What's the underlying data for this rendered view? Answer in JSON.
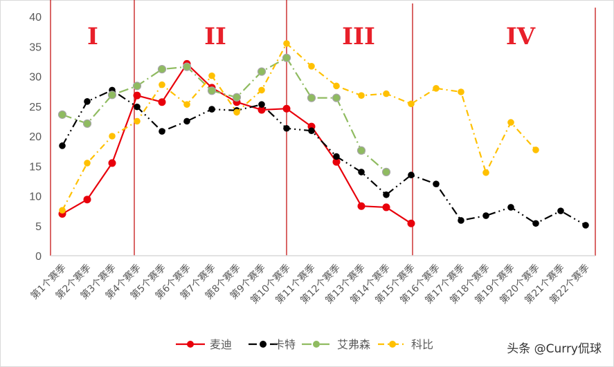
{
  "chart_data": {
    "type": "line",
    "title": "",
    "xlabel": "",
    "ylabel": "",
    "ylim": [
      0,
      40
    ],
    "yticks": [
      0,
      5,
      10,
      15,
      20,
      25,
      30,
      35,
      40
    ],
    "grid": false,
    "legend_position": "bottom",
    "categories": [
      "第1个赛季",
      "第2个赛季",
      "第3个赛季",
      "第4个赛季",
      "第5个赛季",
      "第6个赛季",
      "第7个赛季",
      "第8个赛季",
      "第9个赛季",
      "第10个赛季",
      "第11个赛季",
      "第12个赛季",
      "第13个赛季",
      "第14个赛季",
      "第15个赛季",
      "第16个赛季",
      "第17个赛季",
      "第18个赛季",
      "第19个赛季",
      "第20个赛季",
      "第21个赛季",
      "第22个赛季"
    ],
    "series": [
      {
        "name": "麦迪",
        "color": "#e8000b",
        "style": "solid",
        "values": [
          7.0,
          9.4,
          15.5,
          26.8,
          25.7,
          32.1,
          28.1,
          25.7,
          24.4,
          24.6,
          21.6,
          15.7,
          8.3,
          8.1,
          5.4,
          null,
          null,
          null,
          null,
          null,
          null,
          null
        ]
      },
      {
        "name": "卡特",
        "color": "#000000",
        "style": "dash-dot-dot",
        "values": [
          18.4,
          25.8,
          27.7,
          24.9,
          20.8,
          22.5,
          24.5,
          24.3,
          25.3,
          21.3,
          20.9,
          16.6,
          14.0,
          10.2,
          13.5,
          12.0,
          5.9,
          6.7,
          8.1,
          5.4,
          7.5,
          5.1
        ]
      },
      {
        "name": "艾弗森",
        "color": "#8fbb60",
        "style": "long-dash-dot",
        "values": [
          23.6,
          22.1,
          26.9,
          28.4,
          31.2,
          31.6,
          27.6,
          26.5,
          30.8,
          33.1,
          26.4,
          26.4,
          17.6,
          14.0,
          null,
          null,
          null,
          null,
          null,
          null,
          null,
          null
        ]
      },
      {
        "name": "科比",
        "color": "#ffc000",
        "style": "dash-dot",
        "values": [
          7.6,
          15.5,
          20.0,
          22.5,
          28.6,
          25.3,
          30.1,
          24.0,
          27.7,
          35.5,
          31.7,
          28.4,
          26.8,
          27.1,
          25.4,
          28.0,
          27.4,
          13.9,
          22.3,
          17.7,
          null,
          null
        ]
      }
    ],
    "annotations": [
      {
        "text": "I",
        "region": "第1-3个赛季"
      },
      {
        "text": "II",
        "region": "第4-9个赛季"
      },
      {
        "text": "III",
        "region": "第10-14个赛季"
      },
      {
        "text": "IV",
        "region": "第15-22个赛季"
      }
    ],
    "region_dividers_color": "#c00000"
  },
  "legend": {
    "items": [
      {
        "label": "麦迪"
      },
      {
        "label": "卡特"
      },
      {
        "label": "艾弗森"
      },
      {
        "label": "科比"
      }
    ]
  },
  "watermark": "头条 @Curry侃球"
}
